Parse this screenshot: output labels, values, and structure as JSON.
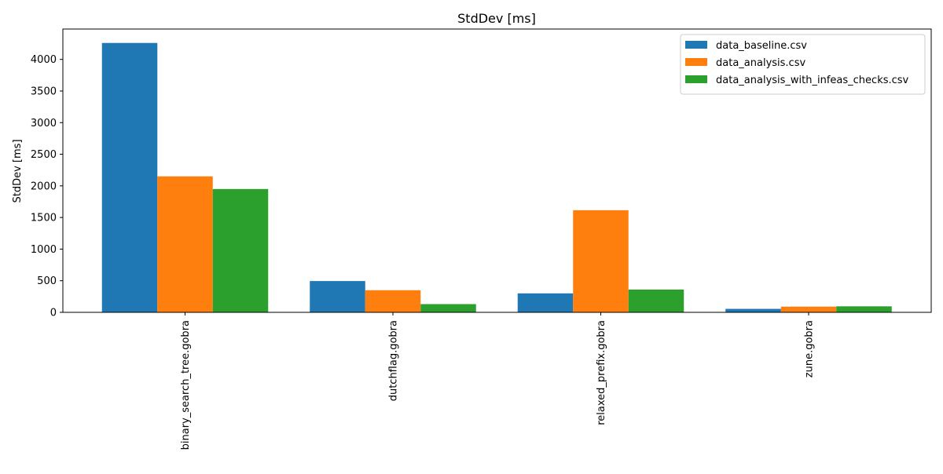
{
  "chart_data": {
    "type": "bar",
    "title": "StdDev [ms]",
    "xlabel": "",
    "ylabel": "StdDev [ms]",
    "categories": [
      "binary_search_tree.gobra",
      "dutchflag.gobra",
      "relaxed_prefix.gobra",
      "zune.gobra"
    ],
    "series": [
      {
        "name": "data_baseline.csv",
        "color": "#1f77b4",
        "values": [
          4260,
          495,
          300,
          55
        ]
      },
      {
        "name": "data_analysis.csv",
        "color": "#ff7f0e",
        "values": [
          2150,
          350,
          1615,
          90
        ]
      },
      {
        "name": "data_analysis_with_infeas_checks.csv",
        "color": "#2ca02c",
        "values": [
          1950,
          130,
          360,
          95
        ]
      }
    ],
    "ylim": [
      0,
      4480
    ],
    "yticks": [
      0,
      500,
      1000,
      1500,
      2000,
      2500,
      3000,
      3500,
      4000
    ],
    "legend_position": "top-right",
    "grid": false,
    "x_tick_rotation": "vertical"
  }
}
